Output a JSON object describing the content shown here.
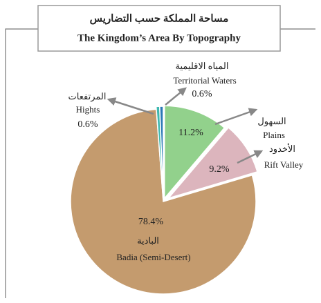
{
  "chart_data": {
    "type": "pie",
    "title": "مساحة المملكة حسب التضاريس",
    "subtitle": "The Kingdom’s Area By Topography",
    "categories": [
      "Plains",
      "Rift Valley",
      "Badia (Semi-Desert)",
      "Hights",
      "Territorial Waters"
    ],
    "categories_ar": [
      "السهول",
      "الأخدود",
      "البادية",
      "المرتفعات",
      "المياه الاقليمية"
    ],
    "values": [
      11.2,
      9.2,
      78.4,
      0.6,
      0.6
    ],
    "value_labels": [
      "11.2%",
      "9.2%",
      "78.4%",
      "0.6%",
      "0.6%"
    ],
    "colors": [
      "#92d18c",
      "#dcb5bd",
      "#c49b6e",
      "#3fb9b0",
      "#2b78b6"
    ]
  }
}
